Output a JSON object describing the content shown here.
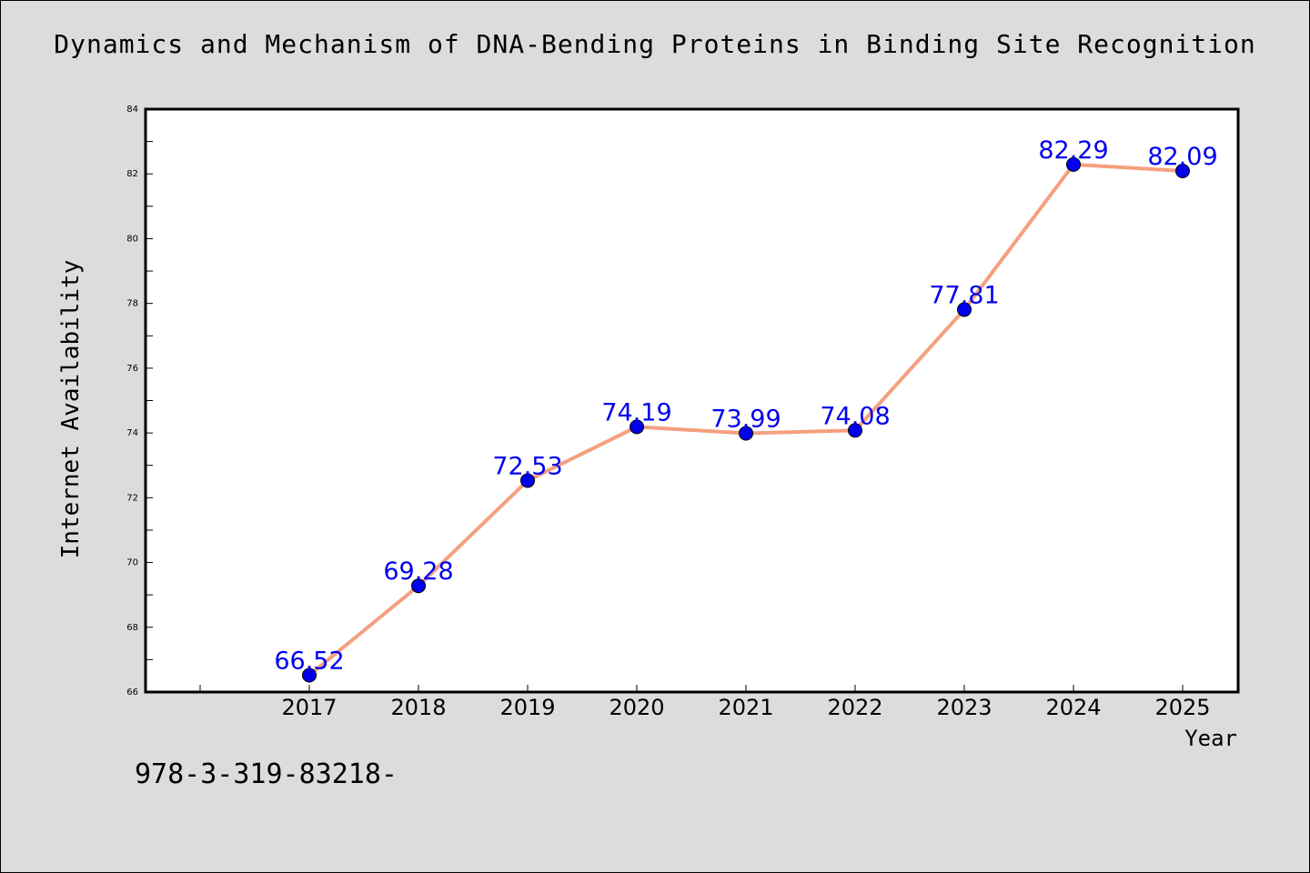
{
  "chart_data": {
    "type": "line",
    "title": "Dynamics and Mechanism of DNA-Bending Proteins in Binding Site Recognition",
    "xlabel": "Year",
    "ylabel": "Internet Availability",
    "categories": [
      "2017",
      "2018",
      "2019",
      "2020",
      "2021",
      "2022",
      "2023",
      "2024",
      "2025"
    ],
    "values": [
      66.52,
      69.28,
      72.53,
      74.19,
      73.99,
      74.08,
      77.81,
      82.29,
      82.09
    ],
    "data_labels": [
      "66.52",
      "69.28",
      "72.53",
      "74.19",
      "73.99",
      "74.08",
      "77.81",
      "82.29",
      "82.09"
    ],
    "ylim": [
      66,
      84
    ],
    "yticks": [
      "66",
      "68",
      "70",
      "72",
      "74",
      "76",
      "78",
      "80",
      "82",
      "84"
    ],
    "grid": false,
    "line_color": "#f4a07f",
    "marker_color": "#0000ee",
    "label_color": "#0000ee"
  },
  "footnote": "978-3-319-83218-"
}
